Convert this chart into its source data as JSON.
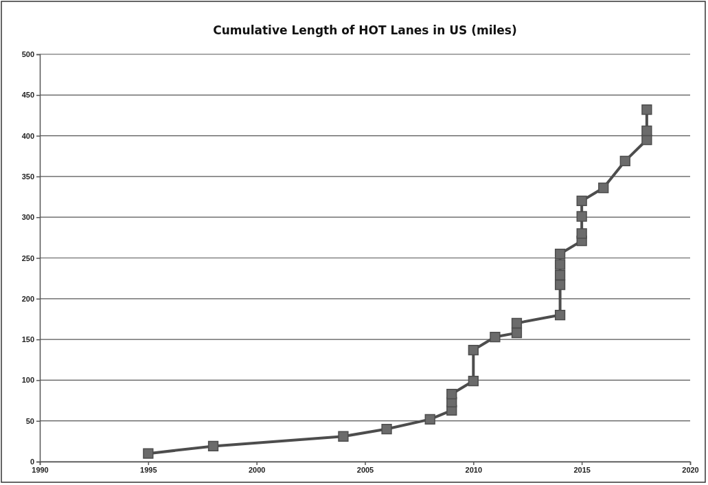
{
  "chart_data": {
    "type": "line",
    "title": "Cumulative Length of HOT Lanes in US (miles)",
    "x": [
      1995,
      1998,
      2004,
      2006,
      2008,
      2009,
      2009,
      2009,
      2010,
      2010,
      2011,
      2012,
      2012,
      2014,
      2014,
      2014,
      2014,
      2014,
      2015,
      2015,
      2015,
      2015,
      2016,
      2017,
      2018,
      2018,
      2018
    ],
    "series": [
      {
        "color": "#4d4d4d",
        "values": [
          10,
          19,
          31,
          40,
          52,
          63,
          73,
          83,
          99,
          137,
          153,
          158,
          170,
          180,
          217,
          229,
          242,
          255,
          271,
          280,
          301,
          320,
          336,
          369,
          395,
          406,
          432
        ]
      }
    ],
    "xlim": [
      1990,
      2020
    ],
    "xticks": [
      1990,
      1995,
      2000,
      2005,
      2010,
      2015,
      2020
    ],
    "ylim": [
      0,
      500
    ],
    "yticks": [
      0,
      50,
      100,
      150,
      200,
      250,
      300,
      350,
      400,
      450,
      500
    ],
    "grid": "y",
    "marker": "square",
    "line_style": "solid"
  }
}
